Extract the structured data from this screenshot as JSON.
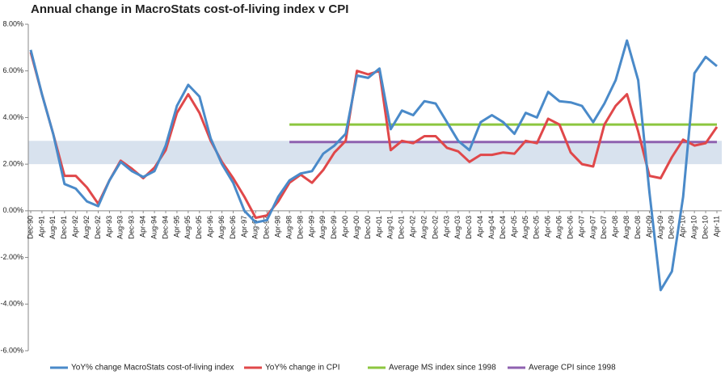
{
  "chart_data": {
    "type": "line",
    "title": "Annual change in MacroStats cost-of-living index v CPI",
    "categories": [
      "Dec-90",
      "Apr-91",
      "Aug-91",
      "Dec-91",
      "Apr-92",
      "Aug-92",
      "Dec-92",
      "Apr-93",
      "Aug-93",
      "Dec-93",
      "Apr-94",
      "Aug-94",
      "Dec-94",
      "Apr-95",
      "Aug-95",
      "Dec-95",
      "Apr-96",
      "Aug-96",
      "Dec-96",
      "Apr-97",
      "Aug-97",
      "Dec-97",
      "Apr-98",
      "Aug-98",
      "Dec-98",
      "Apr-99",
      "Aug-99",
      "Dec-99",
      "Apr-00",
      "Aug-00",
      "Dec-00",
      "Apr-01",
      "Aug-01",
      "Dec-01",
      "Apr-02",
      "Aug-02",
      "Dec-02",
      "Apr-03",
      "Aug-03",
      "Dec-03",
      "Apr-04",
      "Aug-04",
      "Dec-04",
      "Apr-05",
      "Aug-05",
      "Dec-05",
      "Apr-06",
      "Aug-06",
      "Dec-06",
      "Apr-07",
      "Aug-07",
      "Dec-07",
      "Apr-08",
      "Aug-08",
      "Dec-08",
      "Apr-09",
      "Aug-09",
      "Dec-09",
      "Apr-10",
      "Aug-10",
      "Dec-10",
      "Apr-11"
    ],
    "series": [
      {
        "name": "YoY% change MacroStats cost-of-living index",
        "color": "#4a8ac9",
        "values": [
          6.9,
          5.0,
          3.3,
          1.15,
          0.95,
          0.4,
          0.2,
          1.3,
          2.1,
          1.7,
          1.45,
          1.7,
          2.8,
          4.5,
          5.4,
          4.9,
          3.1,
          2.0,
          1.2,
          0.0,
          -0.5,
          -0.4,
          0.6,
          1.3,
          1.6,
          1.7,
          2.45,
          2.8,
          3.3,
          5.8,
          5.7,
          6.1,
          3.5,
          4.3,
          4.1,
          4.7,
          4.6,
          3.8,
          3.0,
          2.6,
          3.8,
          4.1,
          3.8,
          3.3,
          4.2,
          4.0,
          5.1,
          4.7,
          4.65,
          4.5,
          3.8,
          4.6,
          5.6,
          7.3,
          5.6,
          0.8,
          -3.4,
          -2.6,
          0.6,
          5.9,
          6.6,
          6.2
        ]
      },
      {
        "name": "YoY% change in CPI",
        "color": "#e0484a",
        "values": [
          6.8,
          5.0,
          3.3,
          1.5,
          1.5,
          1.0,
          0.3,
          1.3,
          2.15,
          1.8,
          1.4,
          1.85,
          2.6,
          4.2,
          5.0,
          4.2,
          3.0,
          2.1,
          1.4,
          0.6,
          -0.3,
          -0.2,
          0.4,
          1.2,
          1.55,
          1.2,
          1.75,
          2.5,
          3.0,
          6.0,
          5.85,
          6.0,
          2.6,
          3.0,
          2.9,
          3.2,
          3.2,
          2.7,
          2.55,
          2.1,
          2.4,
          2.4,
          2.5,
          2.45,
          3.0,
          2.9,
          3.95,
          3.7,
          2.5,
          2.0,
          1.9,
          3.7,
          4.5,
          5.0,
          3.4,
          1.5,
          1.4,
          2.3,
          3.05,
          2.8,
          2.9,
          3.6
        ]
      },
      {
        "name": "Average MS index since 1998",
        "color": "#8cc63f",
        "values": [
          null,
          null,
          null,
          null,
          null,
          null,
          null,
          null,
          null,
          null,
          null,
          null,
          null,
          null,
          null,
          null,
          null,
          null,
          null,
          null,
          null,
          null,
          null,
          3.7,
          3.7,
          3.7,
          3.7,
          3.7,
          3.7,
          3.7,
          3.7,
          3.7,
          3.7,
          3.7,
          3.7,
          3.7,
          3.7,
          3.7,
          3.7,
          3.7,
          3.7,
          3.7,
          3.7,
          3.7,
          3.7,
          3.7,
          3.7,
          3.7,
          3.7,
          3.7,
          3.7,
          3.7,
          3.7,
          3.7,
          3.7,
          3.7,
          3.7,
          3.7,
          3.7,
          3.7,
          3.7,
          3.7
        ]
      },
      {
        "name": "Average CPI since 1998",
        "color": "#8f62b0",
        "values": [
          null,
          null,
          null,
          null,
          null,
          null,
          null,
          null,
          null,
          null,
          null,
          null,
          null,
          null,
          null,
          null,
          null,
          null,
          null,
          null,
          null,
          null,
          null,
          2.95,
          2.95,
          2.95,
          2.95,
          2.95,
          2.95,
          2.95,
          2.95,
          2.95,
          2.95,
          2.95,
          2.95,
          2.95,
          2.95,
          2.95,
          2.95,
          2.95,
          2.95,
          2.95,
          2.95,
          2.95,
          2.95,
          2.95,
          2.95,
          2.95,
          2.95,
          2.95,
          2.95,
          2.95,
          2.95,
          2.95,
          2.95,
          2.95,
          2.95,
          2.95,
          2.95,
          2.95,
          2.95,
          2.95
        ]
      }
    ],
    "band": [
      2,
      3
    ],
    "band_color": "#d8e2ee",
    "ylim": [
      -6,
      8
    ],
    "yticks": [
      {
        "value": -6,
        "label": "-6.00%"
      },
      {
        "value": -4,
        "label": "-4.00%"
      },
      {
        "value": -2,
        "label": "-2.00%"
      },
      {
        "value": 0,
        "label": "0.00%"
      },
      {
        "value": 2,
        "label": "2.00%"
      },
      {
        "value": 4,
        "label": "4.00%"
      },
      {
        "value": 6,
        "label": "6.00%"
      },
      {
        "value": 8,
        "label": "8.00%"
      }
    ],
    "grid": false,
    "legend": "bottom"
  }
}
